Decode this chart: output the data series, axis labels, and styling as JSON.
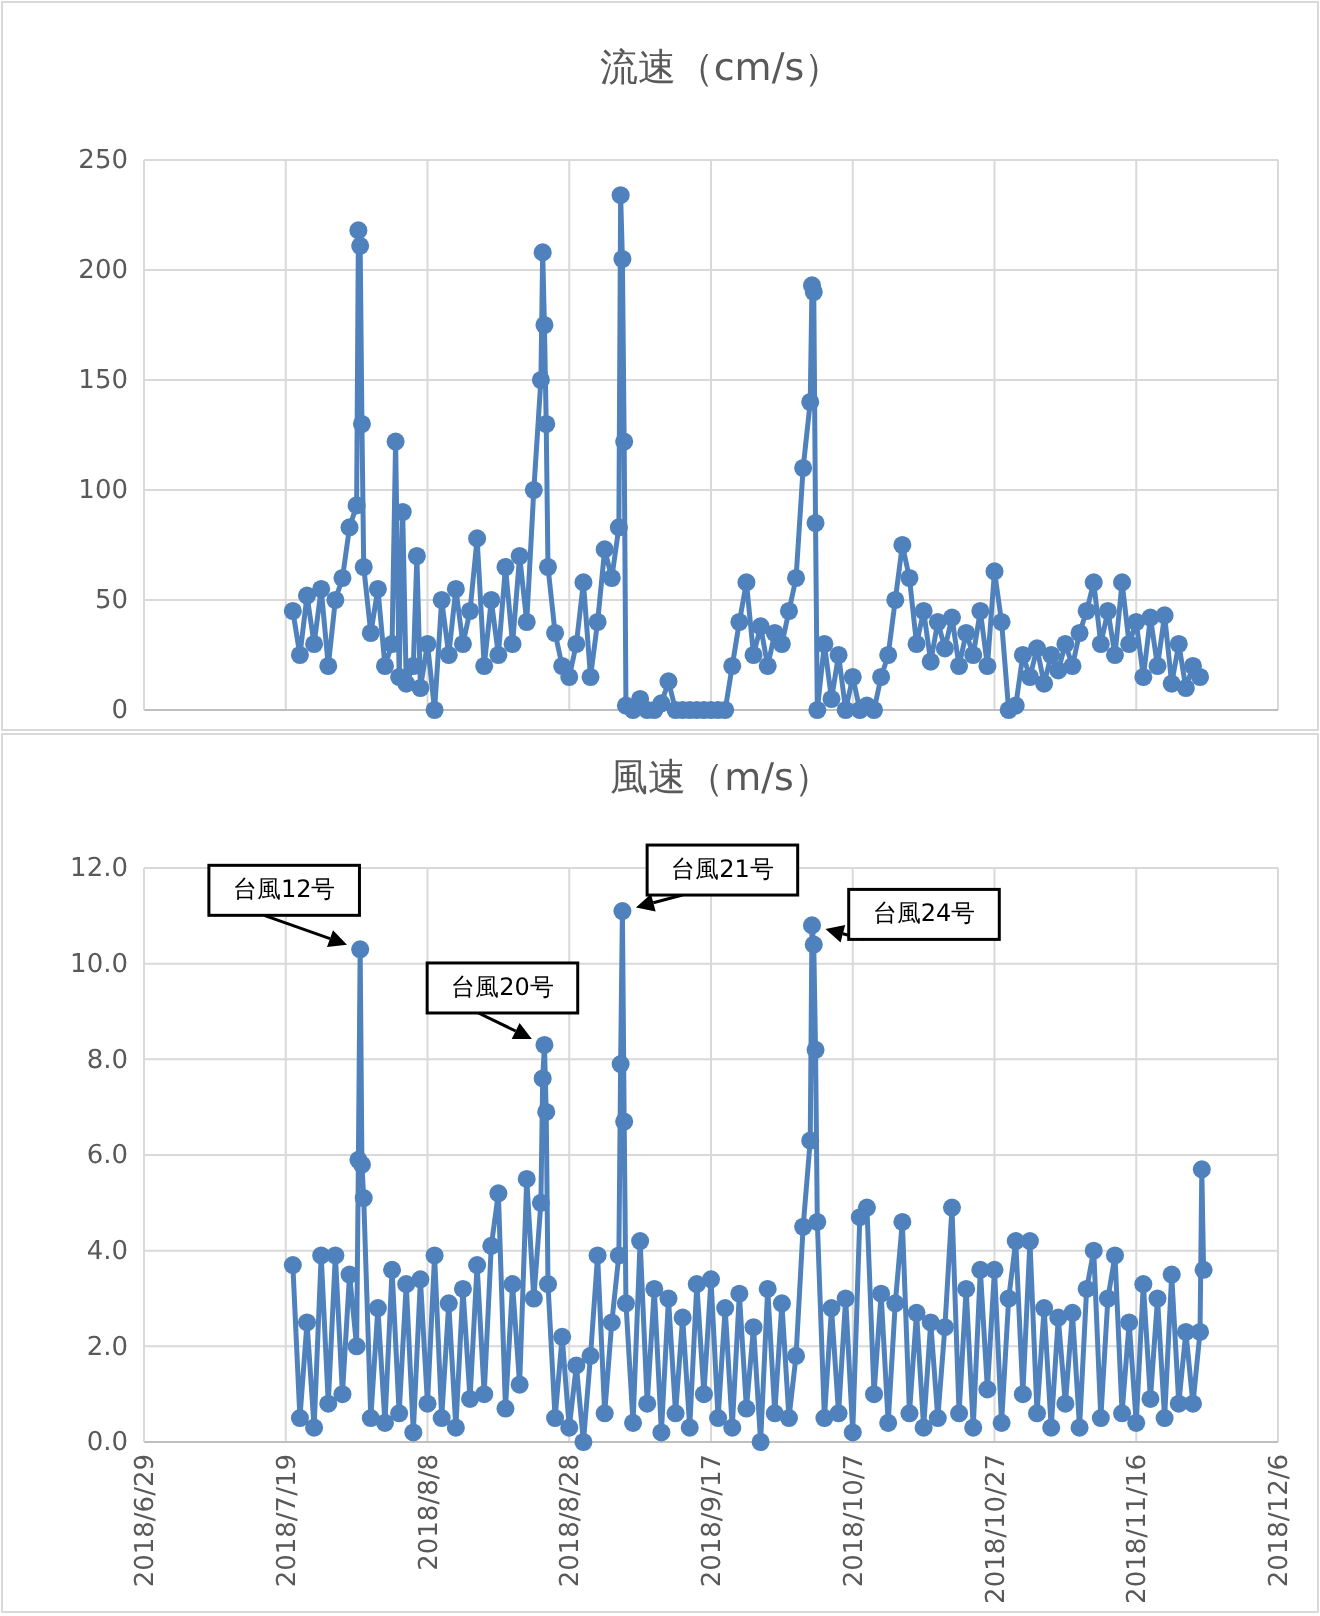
{
  "chart_data": [
    {
      "type": "line",
      "title": "流速（cm/s）",
      "color": "#4f81bd",
      "marker": "circle",
      "grid": true,
      "tick_labels": "y",
      "xlim": [
        "2018-06-29",
        "2018-12-06"
      ],
      "xticks": [
        {
          "value": "2018-06-29",
          "label": null
        },
        {
          "value": "2018-07-19",
          "label": null
        },
        {
          "value": "2018-08-08",
          "label": null
        },
        {
          "value": "2018-08-28",
          "label": null
        },
        {
          "value": "2018-09-17",
          "label": null
        },
        {
          "value": "2018-10-07",
          "label": null
        },
        {
          "value": "2018-10-27",
          "label": null
        },
        {
          "value": "2018-11-16",
          "label": null
        },
        {
          "value": "2018-12-06",
          "label": null
        }
      ],
      "ylim": [
        0,
        250
      ],
      "yticks": [
        0,
        50,
        100,
        150,
        200,
        250
      ],
      "x": [
        "2018-07-20",
        "2018-07-21",
        "2018-07-22",
        "2018-07-23",
        "2018-07-24",
        "2018-07-25",
        "2018-07-26",
        "2018-07-27",
        "2018-07-28",
        "2018-07-29T00:00",
        "2018-07-29T06:00",
        "2018-07-29T12:00",
        "2018-07-29T18:00",
        "2018-07-30",
        "2018-07-31",
        "2018-08-01",
        "2018-08-02",
        "2018-08-03T00:00",
        "2018-08-03T12:00",
        "2018-08-04T00:00",
        "2018-08-04T12:00",
        "2018-08-05",
        "2018-08-06T00:00",
        "2018-08-06T12:00",
        "2018-08-07",
        "2018-08-08",
        "2018-08-09",
        "2018-08-10",
        "2018-08-11",
        "2018-08-12",
        "2018-08-13",
        "2018-08-14",
        "2018-08-15",
        "2018-08-16",
        "2018-08-17",
        "2018-08-18",
        "2018-08-19",
        "2018-08-20",
        "2018-08-21",
        "2018-08-22",
        "2018-08-23",
        "2018-08-24T00:00",
        "2018-08-24T06:00",
        "2018-08-24T12:00",
        "2018-08-24T18:00",
        "2018-08-25",
        "2018-08-26",
        "2018-08-27",
        "2018-08-28",
        "2018-08-29",
        "2018-08-30",
        "2018-08-31",
        "2018-09-01",
        "2018-09-02",
        "2018-09-03",
        "2018-09-04T00:00",
        "2018-09-04T06:00",
        "2018-09-04T12:00",
        "2018-09-04T18:00",
        "2018-09-05",
        "2018-09-06",
        "2018-09-07",
        "2018-09-08",
        "2018-09-09",
        "2018-09-10",
        "2018-09-11",
        "2018-09-12",
        "2018-09-13",
        "2018-09-14",
        "2018-09-15",
        "2018-09-16",
        "2018-09-17",
        "2018-09-18",
        "2018-09-19",
        "2018-09-20",
        "2018-09-21",
        "2018-09-22",
        "2018-09-23",
        "2018-09-24",
        "2018-09-25",
        "2018-09-26",
        "2018-09-27",
        "2018-09-28",
        "2018-09-29",
        "2018-09-30",
        "2018-10-01T00:00",
        "2018-10-01T06:00",
        "2018-10-01T12:00",
        "2018-10-01T18:00",
        "2018-10-02",
        "2018-10-03",
        "2018-10-04",
        "2018-10-05",
        "2018-10-06",
        "2018-10-07",
        "2018-10-08",
        "2018-10-09",
        "2018-10-10",
        "2018-10-11",
        "2018-10-12",
        "2018-10-13",
        "2018-10-14",
        "2018-10-15",
        "2018-10-16",
        "2018-10-17",
        "2018-10-18",
        "2018-10-19",
        "2018-10-20",
        "2018-10-21",
        "2018-10-22",
        "2018-10-23",
        "2018-10-24",
        "2018-10-25",
        "2018-10-26",
        "2018-10-27",
        "2018-10-28",
        "2018-10-29",
        "2018-10-30",
        "2018-10-31",
        "2018-11-01",
        "2018-11-02",
        "2018-11-03",
        "2018-11-04",
        "2018-11-05",
        "2018-11-06",
        "2018-11-07",
        "2018-11-08",
        "2018-11-09",
        "2018-11-10",
        "2018-11-11",
        "2018-11-12",
        "2018-11-13",
        "2018-11-14",
        "2018-11-15",
        "2018-11-16",
        "2018-11-17",
        "2018-11-18",
        "2018-11-19",
        "2018-11-20",
        "2018-11-21",
        "2018-11-22",
        "2018-11-23",
        "2018-11-24",
        "2018-11-25"
      ],
      "values": [
        45,
        25,
        52,
        30,
        55,
        20,
        50,
        60,
        83,
        93,
        218,
        211,
        130,
        65,
        35,
        55,
        20,
        30,
        122,
        15,
        90,
        12,
        20,
        70,
        10,
        30,
        0,
        50,
        25,
        55,
        30,
        45,
        78,
        20,
        50,
        25,
        65,
        30,
        70,
        40,
        100,
        150,
        208,
        175,
        130,
        65,
        35,
        20,
        15,
        30,
        58,
        15,
        40,
        73,
        60,
        83,
        234,
        205,
        122,
        2,
        0,
        5,
        0,
        0,
        3,
        13,
        0,
        0,
        0,
        0,
        0,
        0,
        0,
        0,
        20,
        40,
        58,
        25,
        38,
        20,
        35,
        30,
        45,
        60,
        110,
        140,
        193,
        190,
        85,
        0,
        30,
        5,
        25,
        0,
        15,
        0,
        2,
        0,
        15,
        25,
        50,
        75,
        60,
        30,
        45,
        22,
        40,
        28,
        42,
        20,
        35,
        25,
        45,
        20,
        63,
        40,
        0,
        2,
        25,
        15,
        28,
        12,
        25,
        18,
        30,
        20,
        35,
        45,
        58,
        30,
        45,
        25,
        58,
        30,
        40,
        15,
        42,
        20,
        43,
        12,
        30,
        10,
        20,
        15
      ]
    },
    {
      "type": "line",
      "title": "風速（m/s）",
      "color": "#4f81bd",
      "marker": "circle",
      "grid": true,
      "xlim": [
        "2018-06-29",
        "2018-12-06"
      ],
      "xticks": [
        {
          "value": "2018-06-29",
          "label": "2018/6/29"
        },
        {
          "value": "2018-07-19",
          "label": "2018/7/19"
        },
        {
          "value": "2018-08-08",
          "label": "2018/8/8"
        },
        {
          "value": "2018-08-28",
          "label": "2018/8/28"
        },
        {
          "value": "2018-09-17",
          "label": "2018/9/17"
        },
        {
          "value": "2018-10-07",
          "label": "2018/10/7"
        },
        {
          "value": "2018-10-27",
          "label": "2018/10/27"
        },
        {
          "value": "2018-11-16",
          "label": "2018/11/16"
        },
        {
          "value": "2018-12-06",
          "label": "2018/12/6"
        }
      ],
      "ylim": [
        0,
        12
      ],
      "yticks": [
        {
          "value": 0,
          "label": "0.0"
        },
        {
          "value": 2,
          "label": "2.0"
        },
        {
          "value": 4,
          "label": "4.0"
        },
        {
          "value": 6,
          "label": "6.0"
        },
        {
          "value": 8,
          "label": "8.0"
        },
        {
          "value": 10,
          "label": "10.0"
        },
        {
          "value": 12,
          "label": "12.0"
        }
      ],
      "annotations": [
        {
          "text": "台風12号",
          "x": "2018-07-29T12:00",
          "y": 10.3
        },
        {
          "text": "台風20号",
          "x": "2018-08-24T12:00",
          "y": 8.3
        },
        {
          "text": "台風21号",
          "x": "2018-09-04T12:00",
          "y": 11.1
        },
        {
          "text": "台風24号",
          "x": "2018-10-01T06:00",
          "y": 10.8
        }
      ],
      "x": [
        "2018-07-20",
        "2018-07-21",
        "2018-07-22",
        "2018-07-23",
        "2018-07-24",
        "2018-07-25",
        "2018-07-26",
        "2018-07-27",
        "2018-07-28",
        "2018-07-29T00:00",
        "2018-07-29T06:00",
        "2018-07-29T12:00",
        "2018-07-29T18:00",
        "2018-07-30",
        "2018-07-31",
        "2018-08-01",
        "2018-08-02",
        "2018-08-03",
        "2018-08-04",
        "2018-08-05",
        "2018-08-06",
        "2018-08-07",
        "2018-08-08",
        "2018-08-09",
        "2018-08-10",
        "2018-08-11",
        "2018-08-12",
        "2018-08-13",
        "2018-08-14",
        "2018-08-15",
        "2018-08-16",
        "2018-08-17",
        "2018-08-18",
        "2018-08-19",
        "2018-08-20",
        "2018-08-21",
        "2018-08-22",
        "2018-08-23",
        "2018-08-24T00:00",
        "2018-08-24T06:00",
        "2018-08-24T12:00",
        "2018-08-24T18:00",
        "2018-08-25",
        "2018-08-26",
        "2018-08-27",
        "2018-08-28",
        "2018-08-29",
        "2018-08-30",
        "2018-08-31",
        "2018-09-01",
        "2018-09-02",
        "2018-09-03",
        "2018-09-04T00:00",
        "2018-09-04T06:00",
        "2018-09-04T12:00",
        "2018-09-04T18:00",
        "2018-09-05",
        "2018-09-06",
        "2018-09-07",
        "2018-09-08",
        "2018-09-09",
        "2018-09-10",
        "2018-09-11",
        "2018-09-12",
        "2018-09-13",
        "2018-09-14",
        "2018-09-15",
        "2018-09-16",
        "2018-09-17",
        "2018-09-18",
        "2018-09-19",
        "2018-09-20",
        "2018-09-21",
        "2018-09-22",
        "2018-09-23",
        "2018-09-24",
        "2018-09-25",
        "2018-09-26",
        "2018-09-27",
        "2018-09-28",
        "2018-09-29",
        "2018-09-30",
        "2018-10-01T00:00",
        "2018-10-01T06:00",
        "2018-10-01T12:00",
        "2018-10-01T18:00",
        "2018-10-02",
        "2018-10-03",
        "2018-10-04",
        "2018-10-05",
        "2018-10-06",
        "2018-10-07",
        "2018-10-08",
        "2018-10-09",
        "2018-10-10",
        "2018-10-11",
        "2018-10-12",
        "2018-10-13",
        "2018-10-14",
        "2018-10-15",
        "2018-10-16",
        "2018-10-17",
        "2018-10-18",
        "2018-10-19",
        "2018-10-20",
        "2018-10-21",
        "2018-10-22",
        "2018-10-23",
        "2018-10-24",
        "2018-10-25",
        "2018-10-26",
        "2018-10-27",
        "2018-10-28",
        "2018-10-29",
        "2018-10-30",
        "2018-10-31",
        "2018-11-01",
        "2018-11-02",
        "2018-11-03",
        "2018-11-04",
        "2018-11-05",
        "2018-11-06",
        "2018-11-07",
        "2018-11-08",
        "2018-11-09",
        "2018-11-10",
        "2018-11-11",
        "2018-11-12",
        "2018-11-13",
        "2018-11-14",
        "2018-11-15",
        "2018-11-16",
        "2018-11-17",
        "2018-11-18",
        "2018-11-19",
        "2018-11-20",
        "2018-11-21",
        "2018-11-22",
        "2018-11-23",
        "2018-11-24",
        "2018-11-25T00:00",
        "2018-11-25T06:00",
        "2018-11-25T12:00"
      ],
      "values": [
        3.7,
        0.5,
        2.5,
        0.3,
        3.9,
        0.8,
        3.9,
        1.0,
        3.5,
        2.0,
        5.9,
        10.3,
        5.8,
        5.1,
        0.5,
        2.8,
        0.4,
        3.6,
        0.6,
        3.3,
        0.2,
        3.4,
        0.8,
        3.9,
        0.5,
        2.9,
        0.3,
        3.2,
        0.9,
        3.7,
        1.0,
        4.1,
        5.2,
        0.7,
        3.3,
        1.2,
        5.5,
        3.0,
        5.0,
        7.6,
        8.3,
        6.9,
        3.3,
        0.5,
        2.2,
        0.3,
        1.6,
        0.0,
        1.8,
        3.9,
        0.6,
        2.5,
        3.9,
        7.9,
        11.1,
        6.7,
        2.9,
        0.4,
        4.2,
        0.8,
        3.2,
        0.2,
        3.0,
        0.6,
        2.6,
        0.3,
        3.3,
        1.0,
        3.4,
        0.5,
        2.8,
        0.3,
        3.1,
        0.7,
        2.4,
        0.0,
        3.2,
        0.6,
        2.9,
        0.5,
        1.8,
        4.5,
        6.3,
        10.8,
        10.4,
        8.2,
        4.6,
        0.5,
        2.8,
        0.6,
        3.0,
        0.2,
        4.7,
        4.9,
        1.0,
        3.1,
        0.4,
        2.9,
        4.6,
        0.6,
        2.7,
        0.3,
        2.5,
        0.5,
        2.4,
        4.9,
        0.6,
        3.2,
        0.3,
        3.6,
        1.1,
        3.6,
        0.4,
        3.0,
        4.2,
        1.0,
        4.2,
        0.6,
        2.8,
        0.3,
        2.6,
        0.8,
        2.7,
        0.3,
        3.2,
        4.0,
        0.5,
        3.0,
        3.9,
        0.6,
        2.5,
        0.4,
        3.3,
        0.9,
        3.0,
        0.5,
        3.5,
        0.8,
        2.3,
        0.8,
        2.3,
        5.7,
        3.6
      ]
    }
  ]
}
